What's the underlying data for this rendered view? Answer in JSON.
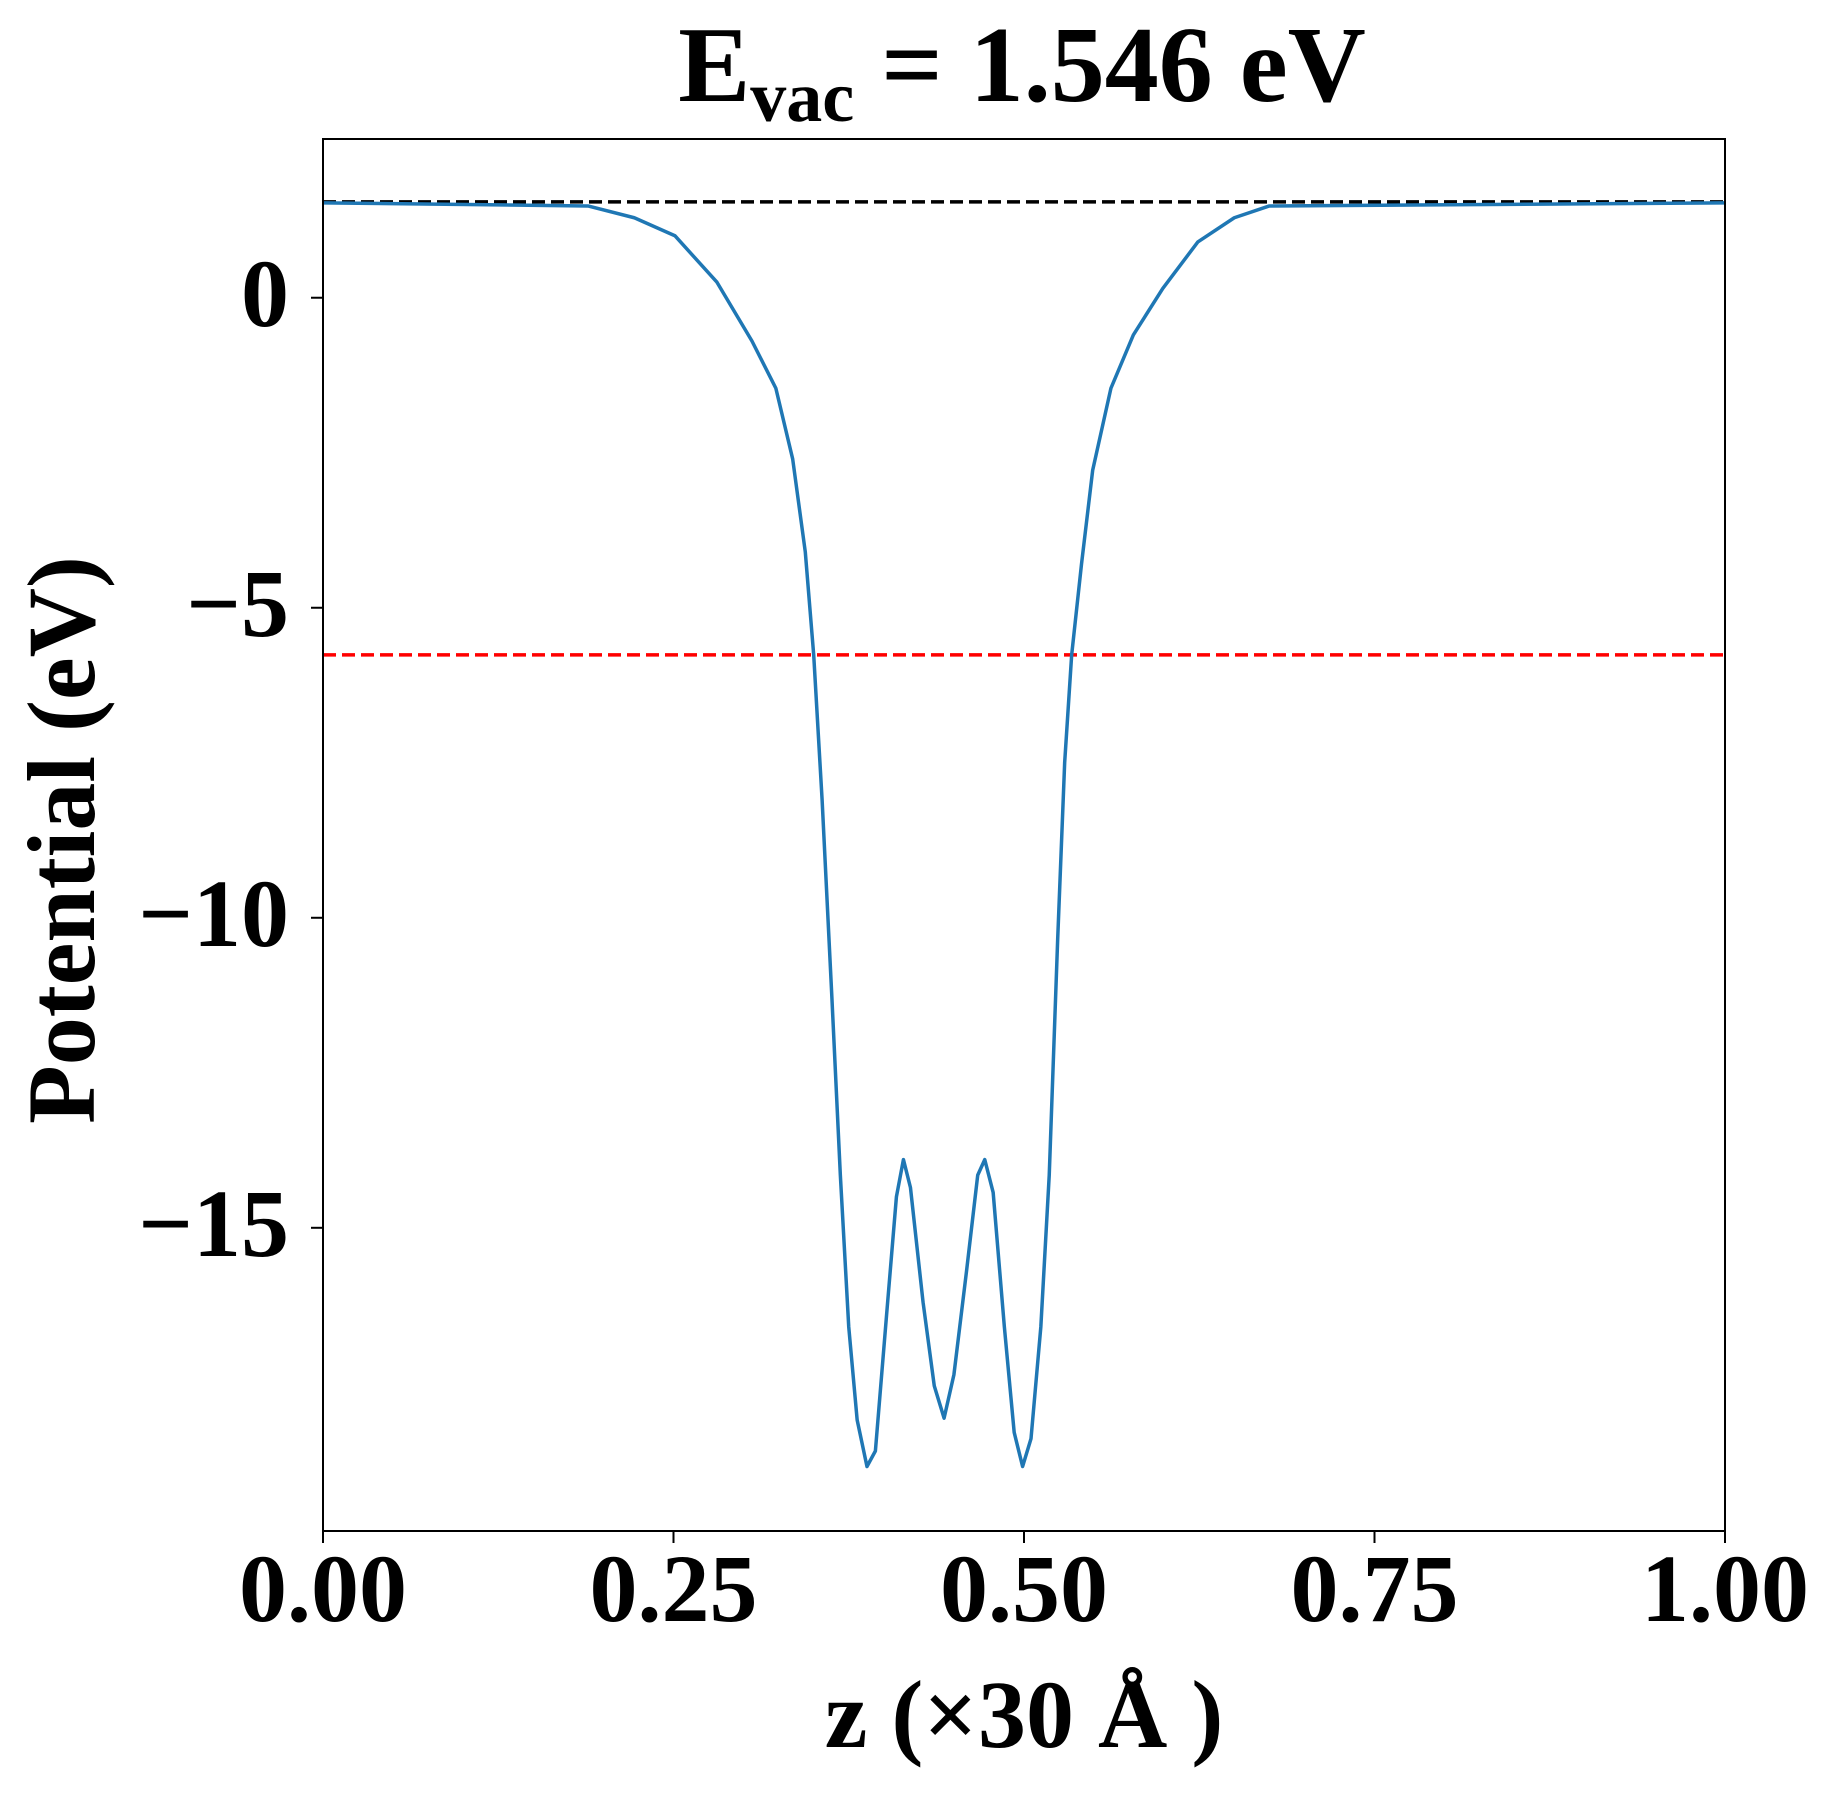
{
  "chart_data": {
    "type": "line",
    "title": {
      "main": "E",
      "sub": "vac",
      "rest": " = 1.546 eV"
    },
    "xlabel": "z (×30 Å )",
    "ylabel": "Potential (eV)",
    "xlim": [
      0,
      1
    ],
    "ylim": [
      -19.89,
      2.56
    ],
    "xticks": [
      {
        "value": 0,
        "label": "0.00"
      },
      {
        "value": 0.25,
        "label": "0.25"
      },
      {
        "value": 0.5,
        "label": "0.50"
      },
      {
        "value": 0.75,
        "label": "0.75"
      },
      {
        "value": 1,
        "label": "1.00"
      }
    ],
    "yticks": [
      0,
      {
        "value": -5,
        "label": "−5"
      },
      {
        "value": -10,
        "label": "−10"
      },
      {
        "value": -15,
        "label": "−15"
      }
    ],
    "grid": false,
    "hlines": [
      {
        "value": 1.546,
        "color": "#000000"
      },
      {
        "value": -5.76,
        "color": "#ff0000"
      }
    ],
    "series": [
      {
        "color": "#1f77b4",
        "x": [
          0,
          0.189,
          0.222,
          0.251,
          0.281,
          0.306,
          0.323,
          0.335,
          0.344,
          0.35,
          0.356,
          0.363,
          0.369,
          0.375,
          0.381,
          0.388,
          0.394,
          0.402,
          0.409,
          0.414,
          0.419,
          0.428,
          0.436,
          0.443,
          0.45,
          0.459,
          0.467,
          0.472,
          0.478,
          0.486,
          0.493,
          0.499,
          0.505,
          0.512,
          0.518,
          0.524,
          0.529,
          0.534,
          0.541,
          0.549,
          0.562,
          0.578,
          0.599,
          0.624,
          0.65,
          0.675,
          1
        ],
        "values": [
          1.53,
          1.48,
          1.29,
          1.0,
          0.25,
          -0.7,
          -1.46,
          -2.6,
          -4.1,
          -5.76,
          -8.1,
          -11.3,
          -14.15,
          -16.6,
          -18.1,
          -18.85,
          -18.6,
          -16.4,
          -14.5,
          -13.9,
          -14.35,
          -16.2,
          -17.55,
          -18.07,
          -17.37,
          -15.7,
          -14.15,
          -13.9,
          -14.43,
          -16.6,
          -18.3,
          -18.85,
          -18.4,
          -16.6,
          -14.15,
          -10.36,
          -7.5,
          -5.76,
          -4.3,
          -2.78,
          -1.46,
          -0.6,
          0.15,
          0.9,
          1.29,
          1.48,
          1.53
        ]
      }
    ]
  }
}
